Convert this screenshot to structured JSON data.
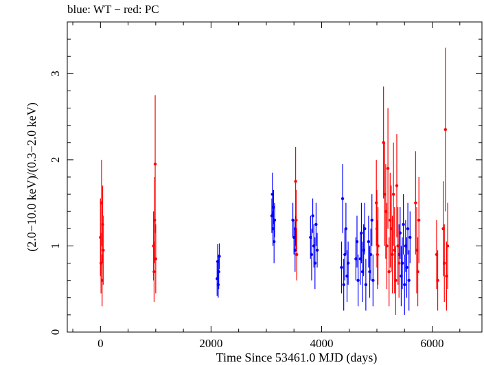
{
  "chart_data": {
    "type": "scatter",
    "title": "blue: WT − red: PC",
    "xlabel": "Time Since 53461.0 MJD (days)",
    "ylabel": "(2.0−10.0 keV)/(0.3−2.0 keV)",
    "xlim": [
      -600,
      6900
    ],
    "ylim": [
      0,
      3.6
    ],
    "xticks": [
      0,
      2000,
      4000,
      6000
    ],
    "yticks": [
      0,
      1,
      2,
      3
    ],
    "grid": false,
    "error_bars": true,
    "series": [
      {
        "name": "WT",
        "color": "#0000ff",
        "x": [
          2110,
          2120,
          2130,
          2140,
          2150,
          3100,
          3110,
          3120,
          3130,
          3140,
          3150,
          3480,
          3500,
          3520,
          3530,
          3800,
          3820,
          3840,
          3860,
          3880,
          3900,
          3920,
          4360,
          4380,
          4400,
          4420,
          4440,
          4460,
          4480,
          4620,
          4640,
          4660,
          4700,
          4720,
          4740,
          4760,
          4780,
          4800,
          4850,
          4870,
          4890,
          4910,
          4930,
          5400,
          5420,
          5440,
          5460,
          5480,
          5500,
          5520,
          5540,
          5560,
          5580,
          5600
        ],
        "y": [
          0.62,
          0.82,
          0.55,
          0.7,
          0.88,
          1.35,
          1.6,
          1.2,
          1.45,
          1.05,
          1.3,
          1.3,
          1.1,
          0.95,
          1.2,
          1.1,
          0.9,
          1.35,
          1.0,
          0.8,
          1.25,
          0.95,
          0.75,
          1.55,
          0.55,
          0.9,
          1.2,
          0.65,
          0.8,
          0.85,
          1.05,
          0.6,
          0.85,
          1.15,
          0.7,
          0.95,
          1.2,
          0.55,
          1.05,
          0.7,
          0.9,
          1.3,
          0.6,
          0.9,
          1.15,
          0.65,
          0.8,
          1.25,
          0.55,
          1.0,
          0.75,
          1.2,
          0.6,
          1.1
        ],
        "yerr": [
          0.2,
          0.2,
          0.15,
          0.2,
          0.15,
          0.2,
          0.25,
          0.2,
          0.2,
          0.25,
          0.2,
          0.2,
          0.2,
          0.25,
          0.2,
          0.25,
          0.3,
          0.2,
          0.25,
          0.3,
          0.25,
          0.2,
          0.3,
          0.4,
          0.3,
          0.3,
          0.3,
          0.3,
          0.25,
          0.25,
          0.3,
          0.3,
          0.3,
          0.35,
          0.35,
          0.3,
          0.3,
          0.3,
          0.3,
          0.3,
          0.3,
          0.3,
          0.3,
          0.35,
          0.3,
          0.35,
          0.3,
          0.35,
          0.35,
          0.3,
          0.35,
          0.3,
          0.35,
          0.3
        ]
      },
      {
        "name": "PC",
        "color": "#ff0000",
        "x": [
          0,
          10,
          20,
          30,
          40,
          50,
          960,
          970,
          980,
          990,
          1000,
          3530,
          3540,
          3550,
          4990,
          5000,
          5010,
          5020,
          5120,
          5140,
          5160,
          5180,
          5200,
          5220,
          5240,
          5260,
          5280,
          5300,
          5320,
          5340,
          5360,
          5380,
          5400,
          5700,
          5720,
          5740,
          5760,
          6080,
          6100,
          6200,
          6220,
          6240,
          6260,
          6280
        ],
        "y": [
          1.1,
          0.8,
          1.5,
          0.6,
          1.25,
          0.95,
          1.0,
          0.7,
          1.3,
          1.95,
          0.85,
          1.75,
          1.3,
          0.9,
          1.5,
          1.2,
          0.9,
          1.0,
          2.2,
          1.6,
          1.4,
          1.0,
          1.9,
          0.7,
          1.3,
          1.2,
          0.9,
          1.6,
          0.95,
          0.6,
          1.7,
          1.0,
          0.8,
          1.5,
          0.95,
          0.7,
          1.3,
          0.9,
          0.6,
          1.2,
          0.8,
          2.35,
          0.65,
          1.0
        ],
        "yerr": [
          0.45,
          0.35,
          0.5,
          0.3,
          0.45,
          0.4,
          0.4,
          0.35,
          0.5,
          0.8,
          0.4,
          0.4,
          0.35,
          0.3,
          0.5,
          0.45,
          0.4,
          0.45,
          0.65,
          0.6,
          0.55,
          0.5,
          0.7,
          0.4,
          0.55,
          0.5,
          0.45,
          0.6,
          0.5,
          0.4,
          0.6,
          0.45,
          0.4,
          0.6,
          0.5,
          0.4,
          0.5,
          0.4,
          0.35,
          0.55,
          0.45,
          0.95,
          0.4,
          0.5
        ]
      }
    ]
  }
}
